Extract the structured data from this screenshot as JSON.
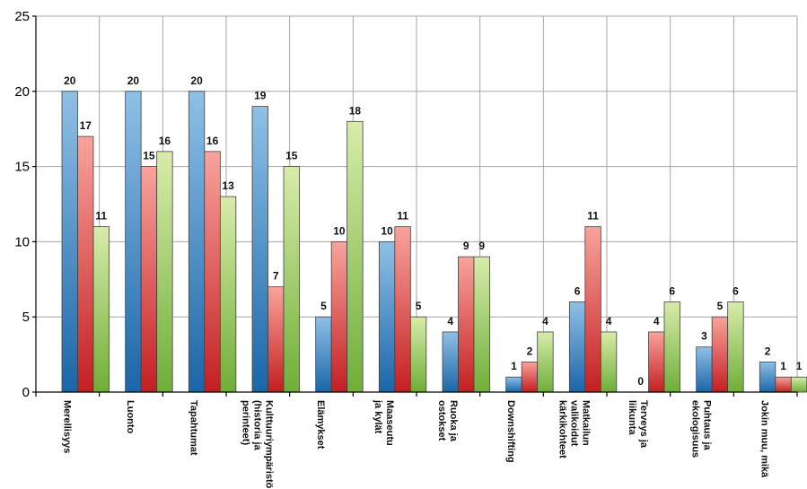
{
  "chart_data": {
    "type": "bar",
    "categories": [
      [
        "Merellisyys"
      ],
      [
        "Luonto"
      ],
      [
        "Tapahtumat"
      ],
      [
        "Kulttuuriympäristö",
        "(historia ja",
        "perinteet)"
      ],
      [
        "Elämykset"
      ],
      [
        "Maaseutu",
        "ja kylät"
      ],
      [
        "Ruoka ja",
        "ostokset"
      ],
      [
        "Downshifting"
      ],
      [
        "Matkailun",
        "valikoidut",
        "kärkikohteet"
      ],
      [
        "Terveys ja",
        "liikunta"
      ],
      [
        "Puhtaus ja",
        "ekologisuus"
      ],
      [
        "Jokin muu, mikä"
      ]
    ],
    "series": [
      {
        "values": [
          20,
          20,
          20,
          19,
          5,
          10,
          4,
          1,
          6,
          0,
          3,
          2
        ]
      },
      {
        "values": [
          17,
          15,
          16,
          7,
          10,
          11,
          9,
          2,
          11,
          4,
          5,
          1
        ]
      },
      {
        "values": [
          11,
          16,
          13,
          15,
          18,
          5,
          9,
          4,
          4,
          6,
          6,
          1
        ]
      }
    ],
    "ylim": [
      0,
      25
    ],
    "yticks": [
      0,
      5,
      10,
      15,
      20,
      25
    ],
    "grid": true,
    "legend": "none",
    "colors": {
      "series0": [
        "#8fc0e6",
        "#1a66a8"
      ],
      "series1": [
        "#f8a39c",
        "#c41f22"
      ],
      "series2": [
        "#d8ecaa",
        "#6fae38"
      ]
    },
    "title": "",
    "xlabel": "",
    "ylabel": ""
  }
}
